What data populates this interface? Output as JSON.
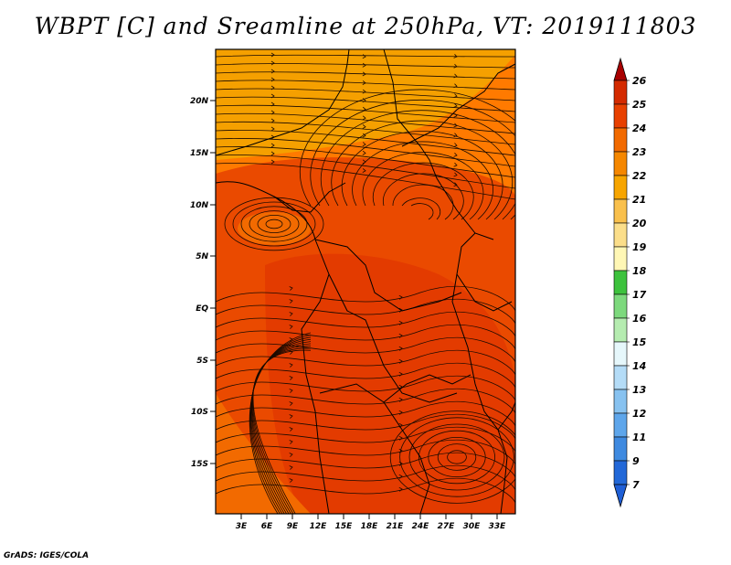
{
  "title": "WBPT [C] and Sreamline at 250hPa, VT: 2019111803",
  "footer": "GrADS: IGES/COLA",
  "map": {
    "lat_labels": [
      "20N",
      "15N",
      "10N",
      "5N",
      "EQ",
      "5S",
      "10S",
      "15S"
    ],
    "lon_labels": [
      "3E",
      "6E",
      "9E",
      "12E",
      "15E",
      "18E",
      "21E",
      "24E",
      "27E",
      "30E",
      "33E"
    ],
    "field_colors": {
      "orange_light": "#f5a000",
      "orange": "#ff7a00",
      "orange_deep": "#f26a00",
      "red_orange": "#ea4a00",
      "red": "#e33b00"
    }
  },
  "colorbar": {
    "levels": [
      {
        "label": "26",
        "color": "#c01010"
      },
      {
        "label": "25",
        "color": "#d42a00"
      },
      {
        "label": "24",
        "color": "#e84000"
      },
      {
        "label": "23",
        "color": "#f26a00"
      },
      {
        "label": "22",
        "color": "#f58700"
      },
      {
        "label": "21",
        "color": "#f7a500"
      },
      {
        "label": "20",
        "color": "#f9c04c"
      },
      {
        "label": "19",
        "color": "#fbde8a"
      },
      {
        "label": "18",
        "color": "#fff7b5"
      },
      {
        "label": "17",
        "color": "#3dc23d"
      },
      {
        "label": "16",
        "color": "#7dd97d"
      },
      {
        "label": "15",
        "color": "#b5ecb0"
      },
      {
        "label": "14",
        "color": "#e6f7fb"
      },
      {
        "label": "13",
        "color": "#b4dcf7"
      },
      {
        "label": "12",
        "color": "#87c2f0"
      },
      {
        "label": "11",
        "color": "#5ea6eb"
      },
      {
        "label": "9",
        "color": "#3f8ae0"
      },
      {
        "label": "7",
        "color": "#2268d8"
      }
    ],
    "top_color": "#a80000",
    "bottom_color": "#1f5fd6"
  }
}
